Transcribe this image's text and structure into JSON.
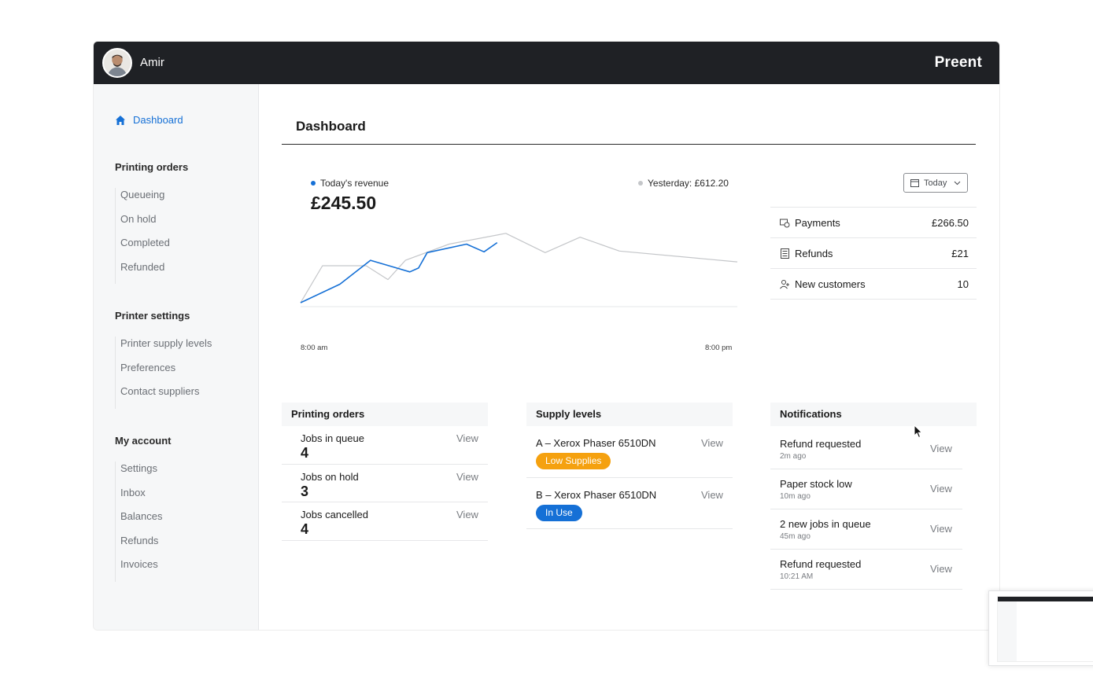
{
  "header": {
    "username": "Amir",
    "brand": "Preent",
    "avatar_icon": "user-avatar"
  },
  "sidebar": {
    "active_item": {
      "label": "Dashboard",
      "icon": "home-icon"
    },
    "groups": [
      {
        "title": "Printing orders",
        "items": [
          "Queueing",
          "On hold",
          "Completed",
          "Refunded"
        ]
      },
      {
        "title": "Printer settings",
        "items": [
          "Printer supply levels",
          "Preferences",
          "Contact suppliers"
        ]
      },
      {
        "title": "My account",
        "items": [
          "Settings",
          "Inbox",
          "Balances",
          "Refunds",
          "Invoices"
        ]
      }
    ]
  },
  "main": {
    "title": "Dashboard",
    "revenue": {
      "today_label": "Today's revenue",
      "today_value": "£245.50",
      "yesterday_label": "Yesterday: £612.20",
      "tick_start": "8:00 am",
      "tick_end": "8:00 pm"
    },
    "date_filter": {
      "label": "Today"
    },
    "stats": [
      {
        "label": "Payments",
        "value": "£266.50",
        "icon": "payment-icon"
      },
      {
        "label": "Refunds",
        "value": "£21",
        "icon": "receipt-icon"
      },
      {
        "label": "New customers",
        "value": "10",
        "icon": "add-user-icon"
      }
    ],
    "printing_orders": {
      "title": "Printing orders",
      "rows": [
        {
          "label": "Jobs in queue",
          "value": "4",
          "action": "View"
        },
        {
          "label": "Jobs on hold",
          "value": "3",
          "action": "View"
        },
        {
          "label": "Jobs cancelled",
          "value": "4",
          "action": "View"
        }
      ]
    },
    "supply_levels": {
      "title": "Supply levels",
      "rows": [
        {
          "label": "A –  Xerox Phaser 6510DN",
          "status": "Low Supplies",
          "action": "View"
        },
        {
          "label": "B –  Xerox Phaser 6510DN",
          "status": "In Use",
          "action": "View"
        }
      ]
    },
    "notifications": {
      "title": "Notifications",
      "rows": [
        {
          "title": "Refund requested",
          "time": "2m ago",
          "action": "View"
        },
        {
          "title": "Paper stock low",
          "time": "10m ago",
          "action": "View"
        },
        {
          "title": "2 new jobs in queue",
          "time": "45m ago",
          "action": "View"
        },
        {
          "title": "Refund requested",
          "time": "10:21  AM",
          "action": "View"
        }
      ]
    }
  },
  "colors": {
    "accent": "#1570d6",
    "topbar": "#1f2125",
    "low_supplies": "#f5a10f",
    "in_use": "#1570d6",
    "yesterday_line": "#c4c6c9"
  },
  "chart_data": {
    "type": "line",
    "x_range": [
      "8:00 am",
      "8:00 pm"
    ],
    "series": [
      {
        "name": "Today's revenue",
        "color": "#1570d6",
        "values": [
          [
            0,
            0
          ],
          [
            0.09,
            0.24
          ],
          [
            0.16,
            0.55
          ],
          [
            0.25,
            0.4
          ],
          [
            0.27,
            0.45
          ],
          [
            0.29,
            0.65
          ],
          [
            0.38,
            0.76
          ],
          [
            0.42,
            0.66
          ],
          [
            0.45,
            0.78
          ]
        ]
      },
      {
        "name": "Yesterday: £612.20",
        "color": "#c4c6c9",
        "values": [
          [
            0,
            0
          ],
          [
            0.05,
            0.48
          ],
          [
            0.15,
            0.48
          ],
          [
            0.2,
            0.3
          ],
          [
            0.24,
            0.55
          ],
          [
            0.34,
            0.76
          ],
          [
            0.47,
            0.9
          ],
          [
            0.56,
            0.65
          ],
          [
            0.64,
            0.85
          ],
          [
            0.73,
            0.67
          ],
          [
            1,
            0.53
          ]
        ]
      }
    ],
    "ylim": [
      0,
      1
    ],
    "grid": false
  }
}
